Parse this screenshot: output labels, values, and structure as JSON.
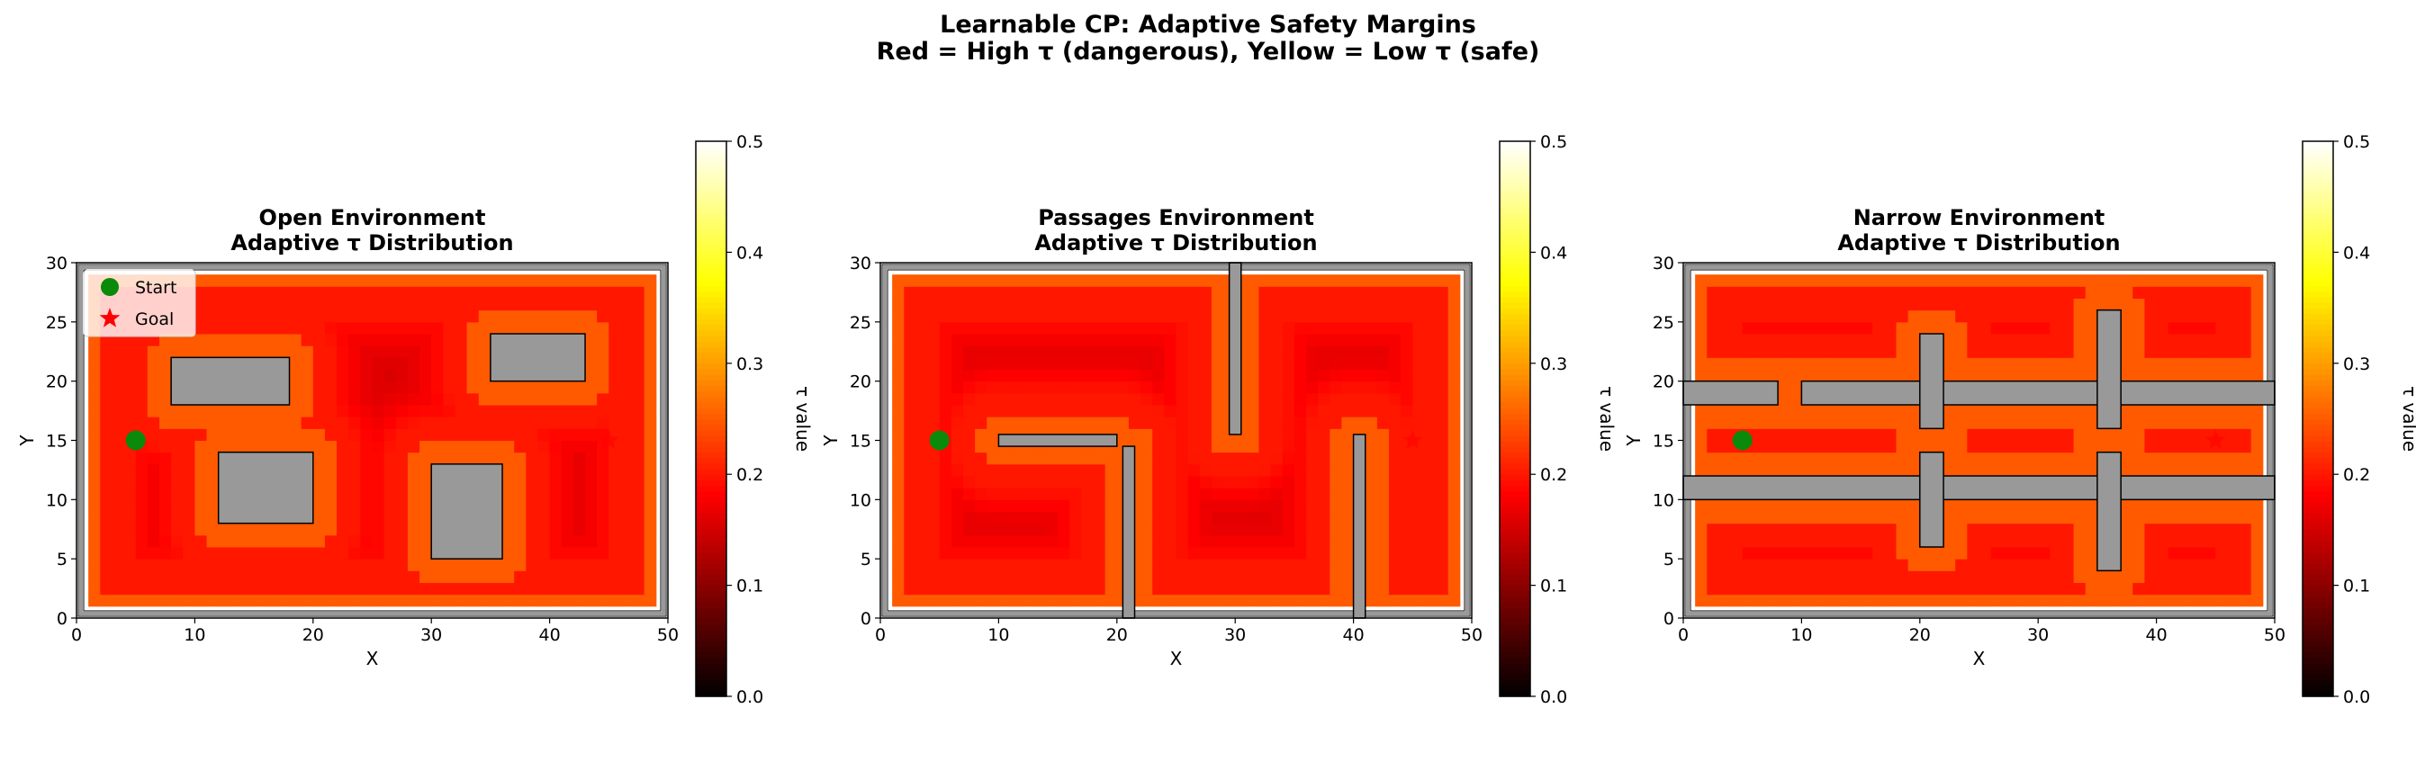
{
  "suptitle_line1": "Learnable CP: Adaptive Safety Margins",
  "suptitle_line2": "Red = High τ (dangerous), Yellow = Low τ (safe)",
  "colormap": {
    "name": "hot",
    "stops": [
      "#000000",
      "#ff0000",
      "#ffff00",
      "#ffffff"
    ]
  },
  "colors": {
    "obstacle": "#999999",
    "start_marker": "#0a8a0a",
    "goal_marker": "#ff0000"
  },
  "legend": {
    "start_label": "Start",
    "goal_label": "Goal"
  },
  "chart_data": [
    {
      "type": "heatmap",
      "title": "Open Environment\nAdaptive τ Distribution",
      "xlabel": "X",
      "ylabel": "Y",
      "xlim": [
        0,
        50
      ],
      "ylim": [
        0,
        30
      ],
      "xticks": [
        0,
        10,
        20,
        30,
        40,
        50
      ],
      "yticks": [
        0,
        5,
        10,
        15,
        20,
        25,
        30
      ],
      "colorbar": {
        "label": "τ value",
        "range": [
          0.0,
          0.5
        ],
        "ticks": [
          "0.0",
          "0.1",
          "0.2",
          "0.3",
          "0.4",
          "0.5"
        ]
      },
      "legend_position": "upper-left",
      "start": [
        5,
        15
      ],
      "goal": [
        45,
        15
      ],
      "tau_levels": {
        "far": 0.15,
        "mid": 0.17,
        "near": 0.2,
        "margin": 0.25
      },
      "obstacles": [
        [
          8,
          18,
          10,
          4
        ],
        [
          12,
          8,
          8,
          6
        ],
        [
          30,
          5,
          6,
          8
        ],
        [
          35,
          20,
          8,
          4
        ]
      ]
    },
    {
      "type": "heatmap",
      "title": "Passages Environment\nAdaptive τ Distribution",
      "xlabel": "X",
      "ylabel": "Y",
      "xlim": [
        0,
        50
      ],
      "ylim": [
        0,
        30
      ],
      "xticks": [
        0,
        10,
        20,
        30,
        40,
        50
      ],
      "yticks": [
        0,
        5,
        10,
        15,
        20,
        25,
        30
      ],
      "colorbar": {
        "label": "τ value",
        "range": [
          0.0,
          0.5
        ],
        "ticks": [
          "0.0",
          "0.1",
          "0.2",
          "0.3",
          "0.4",
          "0.5"
        ]
      },
      "start": [
        5,
        15
      ],
      "goal": [
        45,
        15
      ],
      "tau_levels": {
        "far": 0.15,
        "mid": 0.17,
        "near": 0.2,
        "margin": 0.25
      },
      "obstacles": [
        [
          10,
          14.5,
          10,
          1
        ],
        [
          20.5,
          0,
          1,
          14.5
        ],
        [
          29.5,
          15.5,
          1,
          14.5
        ],
        [
          40,
          0,
          1,
          15.5
        ]
      ]
    },
    {
      "type": "heatmap",
      "title": "Narrow Environment\nAdaptive τ Distribution",
      "xlabel": "X",
      "ylabel": "Y",
      "xlim": [
        0,
        50
      ],
      "ylim": [
        0,
        30
      ],
      "xticks": [
        0,
        10,
        20,
        30,
        40,
        50
      ],
      "yticks": [
        0,
        5,
        10,
        15,
        20,
        25,
        30
      ],
      "colorbar": {
        "label": "τ value",
        "range": [
          0.0,
          0.5
        ],
        "ticks": [
          "0.0",
          "0.1",
          "0.2",
          "0.3",
          "0.4",
          "0.5"
        ]
      },
      "start": [
        5,
        15
      ],
      "goal": [
        45,
        15
      ],
      "tau_levels": {
        "far": 0.15,
        "mid": 0.17,
        "near": 0.2,
        "margin": 0.25
      },
      "obstacles": [
        [
          0,
          18,
          8,
          2
        ],
        [
          10,
          18,
          40,
          2
        ],
        [
          0,
          10,
          50,
          2
        ],
        [
          20,
          16,
          2,
          8
        ],
        [
          20,
          6,
          2,
          8
        ],
        [
          35,
          16,
          2,
          10
        ],
        [
          35,
          4,
          2,
          10
        ]
      ]
    }
  ]
}
